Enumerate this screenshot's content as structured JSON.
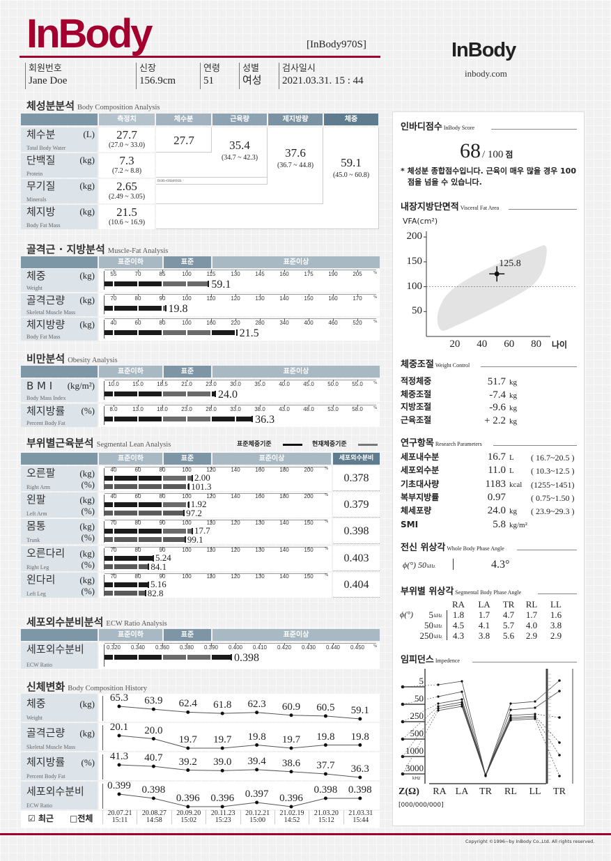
{
  "header": {
    "logo": "InBody",
    "model": "[InBody970S]",
    "right_logo": "InBody",
    "website": "inbody.com",
    "fields": [
      {
        "label": "회원번호",
        "value": "Jane Doe"
      },
      {
        "label": "신장",
        "value": "156.9cm"
      },
      {
        "label": "연령",
        "value": "51"
      },
      {
        "label": "성별",
        "value": "여성"
      },
      {
        "label": "검사일시",
        "value": "2021.03.31. 15 : 44"
      }
    ]
  },
  "body_composition": {
    "title": "체성분분석",
    "subtitle": "Body Composition Analysis",
    "columns": [
      "측정치",
      "체수분",
      "근육량",
      "제지방량",
      "체중"
    ],
    "rows": [
      {
        "label": "체수분",
        "en": "Total Body Water",
        "unit": "(L)",
        "value": "27.7",
        "range": "(27.0 ~ 33.0)"
      },
      {
        "label": "단백질",
        "en": "Protein",
        "unit": "(kg)",
        "value": "7.3",
        "range": "(7.2 ~ 8.8)"
      },
      {
        "label": "무기질",
        "en": "Minerals",
        "unit": "(kg)",
        "value": "2.65",
        "range": "(2.49 ~ 3.05)"
      },
      {
        "label": "체지방",
        "en": "Body Fat Mass",
        "unit": "(kg)",
        "value": "21.5",
        "range": "(10.6 ~ 16.9)"
      }
    ],
    "water": "27.7",
    "muscle": {
      "value": "35.4",
      "range": "(34.7 ~ 42.3)"
    },
    "ffm": {
      "value": "37.6",
      "range": "(36.7 ~ 44.8)"
    },
    "weight": {
      "value": "59.1",
      "range": "(45.0 ~ 60.8)"
    },
    "non_osseous": "non-osseous"
  },
  "zones": [
    "표준이하",
    "표준",
    "표준이상"
  ],
  "percent_sign": "%",
  "muscle_fat": {
    "title": "골격근 · 지방분석",
    "subtitle": "Muscle-Fat Analysis",
    "rows": [
      {
        "label": "체중",
        "en": "Weight",
        "unit": "(kg)",
        "ticks": [
          "55",
          "70",
          "85",
          "100",
          "115",
          "130",
          "145",
          "160",
          "175",
          "190",
          "205"
        ],
        "value": "59.1",
        "level_percent": 113,
        "percent_axis": true
      },
      {
        "label": "골격근량",
        "en": "Skeletal Muscle Mass",
        "unit": "(kg)",
        "ticks": [
          "70",
          "80",
          "90",
          "100",
          "110",
          "120",
          "130",
          "140",
          "150",
          "160",
          "170"
        ],
        "value": "19.8",
        "level_percent": 91,
        "percent_axis": true
      },
      {
        "label": "체지방량",
        "en": "Body Fat Mass",
        "unit": "(kg)",
        "ticks": [
          "40",
          "60",
          "80",
          "100",
          "160",
          "220",
          "280",
          "340",
          "400",
          "460",
          "520"
        ],
        "value": "21.5",
        "level_percent": 221,
        "percent_axis": true
      }
    ]
  },
  "obesity": {
    "title": "비만분석",
    "subtitle": "Obesity Analysis",
    "rows": [
      {
        "label": "B M I",
        "en": "Body Mass Index",
        "unit": "(kg/m²)",
        "ticks": [
          "10.0",
          "15.0",
          "18.5",
          "21.0",
          "23.0",
          "30.0",
          "35.0",
          "40.0",
          "45.0",
          "50.0",
          "55.0"
        ],
        "value": "24.0",
        "level": 24.0
      },
      {
        "label": "체지방률",
        "en": "Percent Body Fat",
        "unit": "(%)",
        "ticks": [
          "8.0",
          "13.0",
          "18.0",
          "23.0",
          "28.0",
          "33.0",
          "38.0",
          "43.0",
          "48.0",
          "53.0",
          "58.0"
        ],
        "value": "36.3",
        "level": 36.3,
        "percent_axis": true
      }
    ]
  },
  "segmental": {
    "title": "부위별근육분석",
    "subtitle": "Segmental Lean Analysis",
    "legend_standard": "표준체중기준",
    "legend_current": "현재체중기준",
    "ecw_header": "세포외수분비",
    "kg_unit": "(kg)",
    "pct_unit": "(%)",
    "rows": [
      {
        "label": "오른팔",
        "en": "Right Arm",
        "ticks": [
          "40",
          "60",
          "80",
          "100",
          "120",
          "140",
          "160",
          "180",
          "200"
        ],
        "kg": "2.00",
        "kg_level_percent": 104,
        "pct": "101.3",
        "ecw": "0.378"
      },
      {
        "label": "왼팔",
        "en": "Left Arm",
        "ticks": [
          "40",
          "60",
          "80",
          "100",
          "120",
          "140",
          "160",
          "180",
          "200"
        ],
        "kg": "1.92",
        "kg_level_percent": 101,
        "pct": "97.2",
        "ecw": "0.379"
      },
      {
        "label": "몸통",
        "en": "Trunk",
        "ticks": [
          "70",
          "80",
          "90",
          "100",
          "110",
          "120",
          "130",
          "140",
          "150"
        ],
        "kg": "17.7",
        "kg_level_percent": 102,
        "pct": "99.1",
        "ecw": "0.398"
      },
      {
        "label": "오른다리",
        "en": "Right Leg",
        "ticks": [
          "70",
          "80",
          "90",
          "100",
          "110",
          "120",
          "130",
          "140",
          "150"
        ],
        "kg": "5.24",
        "kg_level_percent": 86,
        "pct": "84.1",
        "ecw": "0.403"
      },
      {
        "label": "왼다리",
        "en": "Left Leg",
        "ticks": [
          "70",
          "80",
          "90",
          "100",
          "110",
          "120",
          "130",
          "140",
          "150"
        ],
        "kg": "5.16",
        "kg_level_percent": 84,
        "pct": "82.8",
        "ecw": "0.404"
      }
    ]
  },
  "ecw": {
    "title": "세포외수분비분석",
    "subtitle": "ECW Ratio Analysis",
    "rows": [
      {
        "label": "세포외수분비",
        "en": "ECW Ratio",
        "unit": "",
        "ticks": [
          "0.320",
          "0.340",
          "0.360",
          "0.380",
          "0.390",
          "0.400",
          "0.410",
          "0.420",
          "0.430",
          "0.440",
          "0.450"
        ],
        "value": "0.398",
        "level": 0.398
      }
    ]
  },
  "history": {
    "title": "신체변화",
    "subtitle": "Body Composition History",
    "recent": "☑ 최근",
    "all": "□전체",
    "dates": [
      [
        "20.07.21",
        "15:11"
      ],
      [
        "20.08.27",
        "14:58"
      ],
      [
        "20.09.20",
        "15:02"
      ],
      [
        "20.11.23",
        "15:23"
      ],
      [
        "20.12.21",
        "15:00"
      ],
      [
        "21.02.19",
        "14:52"
      ],
      [
        "21.03.20",
        "15:12"
      ],
      [
        "21.03.31",
        "15:44"
      ]
    ],
    "rows": [
      {
        "label": "체중",
        "en": "Weight",
        "unit": "(kg)",
        "values": [
          "65.3",
          "63.9",
          "62.4",
          "61.8",
          "62.3",
          "60.9",
          "60.5",
          "59.1"
        ]
      },
      {
        "label": "골격근량",
        "en": "Skeletal Muscle Mass",
        "unit": "(kg)",
        "values": [
          "20.1",
          "20.0",
          "19.7",
          "19.7",
          "19.8",
          "19.7",
          "19.8",
          "19.8"
        ]
      },
      {
        "label": "체지방률",
        "en": "Percent Body Fat",
        "unit": "(%)",
        "values": [
          "41.3",
          "40.7",
          "39.2",
          "39.0",
          "39.4",
          "38.6",
          "37.7",
          "36.3"
        ]
      },
      {
        "label": "세포외수분비",
        "en": "ECW Ratio",
        "unit": "",
        "values": [
          "0.399",
          "0.398",
          "0.396",
          "0.396",
          "0.397",
          "0.396",
          "0.398",
          "0.398"
        ]
      }
    ]
  },
  "score": {
    "title": "인바디점수",
    "subtitle": "InBody Score",
    "value": "68",
    "max": "/ 100",
    "unit": "점",
    "note": "* 체성분 종합점수입니다. 근육이 매우 많을 경우 100점을 넘을 수 있습니다."
  },
  "vfa": {
    "title": "내장지방단면적",
    "subtitle": "Visceral Fat Area",
    "ylabel": "VFA(cm²)",
    "xlabel": "나이",
    "value": "125.8",
    "chart_data": {
      "type": "scatter",
      "x": [
        51
      ],
      "y": [
        125.8
      ],
      "xticks": [
        "20",
        "40",
        "60",
        "80"
      ],
      "yticks": [
        "50",
        "100",
        "150",
        "200"
      ],
      "xlim": [
        0,
        90
      ],
      "ylim": [
        0,
        210
      ],
      "reference_y": 100
    }
  },
  "weight_control": {
    "title": "체중조절",
    "subtitle": "Weight Control",
    "rows": [
      {
        "label": "적정체중",
        "value": "51.7",
        "unit": "kg"
      },
      {
        "label": "체중조절",
        "value": "-7.4",
        "unit": "kg"
      },
      {
        "label": "지방조절",
        "value": "-9.6",
        "unit": "kg"
      },
      {
        "label": "근육조절",
        "value": "+ 2.2",
        "unit": "kg"
      }
    ]
  },
  "research": {
    "title": "연구항목",
    "subtitle": "Research Parameters",
    "rows": [
      {
        "label": "세포내수분",
        "value": "16.7",
        "unit": "L",
        "range": "( 16.7~20.5 )"
      },
      {
        "label": "세포외수분",
        "value": "11.0",
        "unit": "L",
        "range": "( 10.3~12.5 )"
      },
      {
        "label": "기초대사량",
        "value": "1183",
        "unit": "kcal",
        "range": "(1255~1451)"
      },
      {
        "label": "복부지방률",
        "value": "0.97",
        "unit": "",
        "range": "( 0.75~1.50 )"
      },
      {
        "label": "체세포량",
        "value": "24.0",
        "unit": "kg",
        "range": "( 23.9~29.3 )"
      },
      {
        "label": "SMI",
        "value": "5.8",
        "unit": "kg/m²",
        "range": ""
      }
    ]
  },
  "phase": {
    "title": "전신 위상각",
    "subtitle": "Whole Body Phase Angle",
    "label": "ϕ(°) 50",
    "khz": "kHz",
    "value": "4.3°"
  },
  "seg_phase": {
    "title": "부위별 위상각",
    "subtitle": "Segmental Body Phase Angle",
    "symbol": "ϕ(°)",
    "columns": [
      "RA",
      "LA",
      "TR",
      "RL",
      "LL"
    ],
    "rows": [
      {
        "freq": "5",
        "unit": "kHz",
        "values": [
          "1.8",
          "1.7",
          "4.7",
          "1.7",
          "1.6"
        ]
      },
      {
        "freq": "50",
        "unit": "kHz",
        "values": [
          "4.5",
          "4.1",
          "5.7",
          "4.0",
          "3.8"
        ]
      },
      {
        "freq": "250",
        "unit": "kHz",
        "values": [
          "4.3",
          "3.8",
          "5.6",
          "2.9",
          "2.9"
        ]
      }
    ]
  },
  "impedance": {
    "title": "임피던스",
    "subtitle": "Impedence",
    "freqs": [
      "5",
      "50",
      "250",
      "500",
      "1000",
      "3000"
    ],
    "khz": "kHz",
    "z_label": "Z(Ω)",
    "segments": [
      "RA",
      "LA",
      "TR",
      "RL",
      "LL",
      "TR"
    ],
    "code": "[000/000/000]"
  },
  "footer": {
    "copyright": "Copyright ©1996~by InBody Co.,Ltd. All rights reserved."
  },
  "colors": {
    "brand": "#a3002f",
    "header_dark": "#5f7c8f",
    "header_light": "#a9b9c4",
    "label_bg": "#dde4e9",
    "bar_dark": "#1a1a1a",
    "bar_gray": "#6a6a6a"
  }
}
